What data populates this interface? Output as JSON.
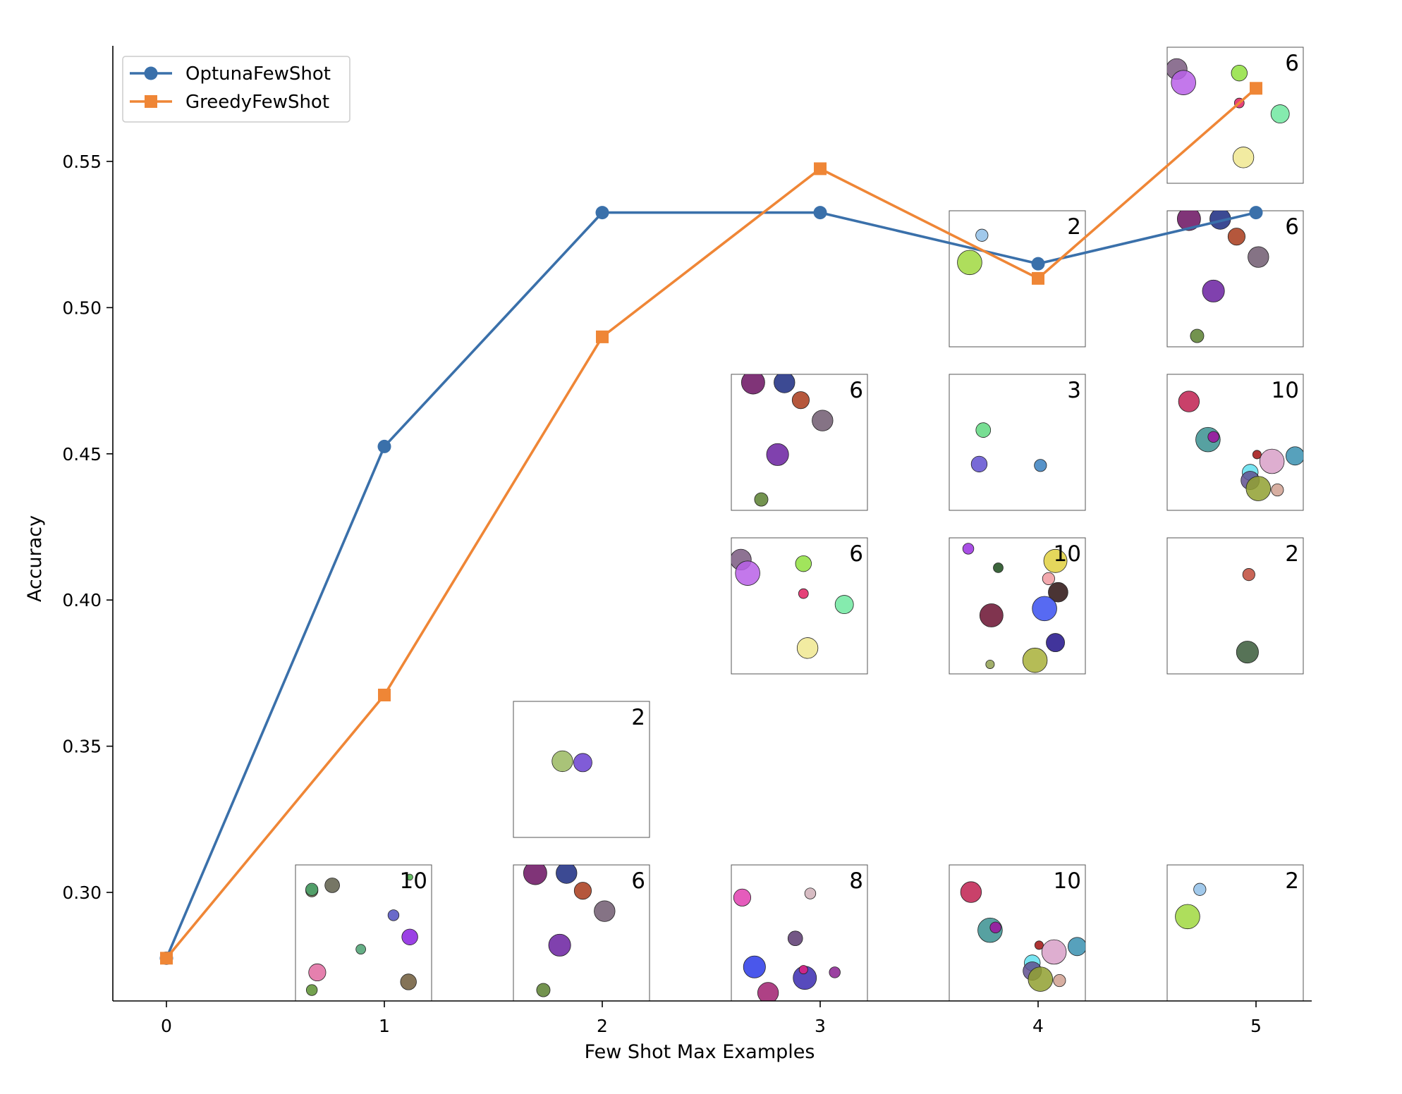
{
  "chart_data": {
    "type": "line",
    "xlabel": "Few Shot Max Examples",
    "ylabel": "Accuracy",
    "xlim": [
      -0.25,
      5.25
    ],
    "ylim": [
      0.2637,
      0.5933
    ],
    "x_ticks": [
      0,
      1,
      2,
      3,
      4,
      5
    ],
    "y_ticks": [
      0.3,
      0.35,
      0.4,
      0.45,
      0.5,
      0.55
    ],
    "x_tick_labels": [
      "0",
      "1",
      "2",
      "3",
      "4",
      "5"
    ],
    "y_tick_labels": [
      "0.30",
      "0.35",
      "0.40",
      "0.45",
      "0.50",
      "0.55"
    ],
    "legend_position": "top-left",
    "series": [
      {
        "name": "OptunaFewShot",
        "color": "#3a70aa",
        "marker": "circle",
        "x": [
          0,
          1,
          2,
          3,
          4,
          5
        ],
        "values": [
          0.2775,
          0.4525,
          0.5325,
          0.5325,
          0.515,
          0.5325
        ]
      },
      {
        "name": "GreedyFewShot",
        "color": "#ef8636",
        "marker": "square",
        "x": [
          0,
          1,
          2,
          3,
          4,
          5
        ],
        "values": [
          0.2775,
          0.3675,
          0.49,
          0.5475,
          0.51,
          0.575
        ]
      }
    ],
    "insets": [
      {
        "x": 1,
        "row": 0,
        "label": "10",
        "circles": [
          {
            "cx": 0.12,
            "cy": 0.19,
            "r": 0.05,
            "color": "#6b6b4a"
          },
          {
            "cx": 0.12,
            "cy": 0.18,
            "r": 0.05,
            "color": "#4aa56a"
          },
          {
            "cx": 0.27,
            "cy": 0.15,
            "r": 0.06,
            "color": "#5e5e4a"
          },
          {
            "cx": 0.84,
            "cy": 0.09,
            "r": 0.025,
            "color": "#4ab04a"
          },
          {
            "cx": 0.72,
            "cy": 0.37,
            "r": 0.045,
            "color": "#5050c0"
          },
          {
            "cx": 0.48,
            "cy": 0.62,
            "r": 0.04,
            "color": "#4aa070"
          },
          {
            "cx": 0.84,
            "cy": 0.53,
            "r": 0.065,
            "color": "#8a20e0"
          },
          {
            "cx": 0.16,
            "cy": 0.79,
            "r": 0.07,
            "color": "#e06aa0"
          },
          {
            "cx": 0.83,
            "cy": 0.86,
            "r": 0.065,
            "color": "#6e5a3a"
          },
          {
            "cx": 0.12,
            "cy": 0.92,
            "r": 0.045,
            "color": "#5a9030"
          }
        ]
      },
      {
        "x": 2,
        "row": 1,
        "label": "2",
        "circles": [
          {
            "cx": 0.36,
            "cy": 0.44,
            "r": 0.085,
            "color": "#9ab860"
          },
          {
            "cx": 0.51,
            "cy": 0.45,
            "r": 0.075,
            "color": "#6a40d0"
          }
        ]
      },
      {
        "x": 2,
        "row": 0,
        "label": "6",
        "circles": [
          {
            "cx": 0.16,
            "cy": 0.06,
            "r": 0.095,
            "color": "#6a1060"
          },
          {
            "cx": 0.39,
            "cy": 0.06,
            "r": 0.085,
            "color": "#1a2a80"
          },
          {
            "cx": 0.51,
            "cy": 0.19,
            "r": 0.07,
            "color": "#a83a1a"
          },
          {
            "cx": 0.67,
            "cy": 0.34,
            "r": 0.085,
            "color": "#705a70"
          },
          {
            "cx": 0.34,
            "cy": 0.59,
            "r": 0.09,
            "color": "#6a20a0"
          },
          {
            "cx": 0.22,
            "cy": 0.92,
            "r": 0.055,
            "color": "#5a8030"
          }
        ]
      },
      {
        "x": 3,
        "row": 3,
        "label": "6",
        "circles": [
          {
            "cx": 0.16,
            "cy": 0.06,
            "r": 0.095,
            "color": "#6a1060"
          },
          {
            "cx": 0.39,
            "cy": 0.06,
            "r": 0.085,
            "color": "#1a2a80"
          },
          {
            "cx": 0.51,
            "cy": 0.19,
            "r": 0.07,
            "color": "#a83a1a"
          },
          {
            "cx": 0.67,
            "cy": 0.34,
            "r": 0.085,
            "color": "#705a70"
          },
          {
            "cx": 0.34,
            "cy": 0.59,
            "r": 0.09,
            "color": "#6a20a0"
          },
          {
            "cx": 0.22,
            "cy": 0.92,
            "r": 0.055,
            "color": "#5a8030"
          }
        ]
      },
      {
        "x": 3,
        "row": 2,
        "label": "6",
        "circles": [
          {
            "cx": 0.07,
            "cy": 0.16,
            "r": 0.085,
            "color": "#7a5a80"
          },
          {
            "cx": 0.12,
            "cy": 0.26,
            "r": 0.1,
            "color": "#b860e8"
          },
          {
            "cx": 0.53,
            "cy": 0.19,
            "r": 0.065,
            "color": "#90e040"
          },
          {
            "cx": 0.53,
            "cy": 0.41,
            "r": 0.04,
            "color": "#e02060"
          },
          {
            "cx": 0.83,
            "cy": 0.49,
            "r": 0.075,
            "color": "#70e8a0"
          },
          {
            "cx": 0.56,
            "cy": 0.81,
            "r": 0.085,
            "color": "#f0e890"
          }
        ]
      },
      {
        "x": 3,
        "row": 0,
        "label": "8",
        "circles": [
          {
            "cx": 0.08,
            "cy": 0.24,
            "r": 0.07,
            "color": "#e040b0"
          },
          {
            "cx": 0.58,
            "cy": 0.21,
            "r": 0.045,
            "color": "#d0b0b8"
          },
          {
            "cx": 0.47,
            "cy": 0.54,
            "r": 0.06,
            "color": "#5a3a70"
          },
          {
            "cx": 0.17,
            "cy": 0.75,
            "r": 0.09,
            "color": "#2a3ae8"
          },
          {
            "cx": 0.54,
            "cy": 0.83,
            "r": 0.095,
            "color": "#3a2ab0"
          },
          {
            "cx": 0.53,
            "cy": 0.77,
            "r": 0.035,
            "color": "#e02080"
          },
          {
            "cx": 0.76,
            "cy": 0.79,
            "r": 0.045,
            "color": "#8a2090"
          },
          {
            "cx": 0.27,
            "cy": 0.94,
            "r": 0.085,
            "color": "#a02070"
          }
        ]
      },
      {
        "x": 4,
        "row": 4,
        "label": "2",
        "circles": [
          {
            "cx": 0.24,
            "cy": 0.18,
            "r": 0.05,
            "color": "#90c0e8"
          },
          {
            "cx": 0.15,
            "cy": 0.38,
            "r": 0.1,
            "color": "#a0d840"
          }
        ]
      },
      {
        "x": 4,
        "row": 3,
        "label": "3",
        "circles": [
          {
            "cx": 0.25,
            "cy": 0.41,
            "r": 0.06,
            "color": "#60d880"
          },
          {
            "cx": 0.22,
            "cy": 0.66,
            "r": 0.065,
            "color": "#6050d0"
          },
          {
            "cx": 0.67,
            "cy": 0.67,
            "r": 0.05,
            "color": "#3a80c0"
          }
        ]
      },
      {
        "x": 4,
        "row": 2,
        "label": "10",
        "circles": [
          {
            "cx": 0.14,
            "cy": 0.08,
            "r": 0.045,
            "color": "#9a30e0"
          },
          {
            "cx": 0.36,
            "cy": 0.22,
            "r": 0.04,
            "color": "#1a4a1a"
          },
          {
            "cx": 0.78,
            "cy": 0.17,
            "r": 0.095,
            "color": "#e0d040"
          },
          {
            "cx": 0.73,
            "cy": 0.3,
            "r": 0.05,
            "color": "#f09aa0"
          },
          {
            "cx": 0.8,
            "cy": 0.4,
            "r": 0.08,
            "color": "#2a1010"
          },
          {
            "cx": 0.7,
            "cy": 0.52,
            "r": 0.1,
            "color": "#3a50f0"
          },
          {
            "cx": 0.31,
            "cy": 0.57,
            "r": 0.095,
            "color": "#6a1030"
          },
          {
            "cx": 0.78,
            "cy": 0.77,
            "r": 0.075,
            "color": "#20108a"
          },
          {
            "cx": 0.3,
            "cy": 0.93,
            "r": 0.035,
            "color": "#90a050"
          },
          {
            "cx": 0.63,
            "cy": 0.9,
            "r": 0.1,
            "color": "#a8b038"
          }
        ]
      },
      {
        "x": 4,
        "row": 0,
        "label": "10",
        "circles": [
          {
            "cx": 0.16,
            "cy": 0.2,
            "r": 0.085,
            "color": "#c02050"
          },
          {
            "cx": 0.3,
            "cy": 0.48,
            "r": 0.1,
            "color": "#3a9090"
          },
          {
            "cx": 0.34,
            "cy": 0.46,
            "r": 0.045,
            "color": "#a010a0"
          },
          {
            "cx": 0.66,
            "cy": 0.59,
            "r": 0.035,
            "color": "#a01010"
          },
          {
            "cx": 0.61,
            "cy": 0.72,
            "r": 0.065,
            "color": "#60e0f0"
          },
          {
            "cx": 0.77,
            "cy": 0.64,
            "r": 0.1,
            "color": "#d8a0c8"
          },
          {
            "cx": 0.94,
            "cy": 0.6,
            "r": 0.075,
            "color": "#3a90b0"
          },
          {
            "cx": 0.61,
            "cy": 0.78,
            "r": 0.075,
            "color": "#605090"
          },
          {
            "cx": 0.67,
            "cy": 0.84,
            "r": 0.1,
            "color": "#90a030"
          },
          {
            "cx": 0.81,
            "cy": 0.85,
            "r": 0.05,
            "color": "#d0a090"
          }
        ]
      },
      {
        "x": 5,
        "row": 5,
        "label": "6",
        "circles": [
          {
            "cx": 0.07,
            "cy": 0.16,
            "r": 0.085,
            "color": "#7a5a80"
          },
          {
            "cx": 0.12,
            "cy": 0.26,
            "r": 0.1,
            "color": "#b860e8"
          },
          {
            "cx": 0.53,
            "cy": 0.19,
            "r": 0.065,
            "color": "#90e040"
          },
          {
            "cx": 0.53,
            "cy": 0.41,
            "r": 0.04,
            "color": "#e02060"
          },
          {
            "cx": 0.83,
            "cy": 0.49,
            "r": 0.075,
            "color": "#70e8a0"
          },
          {
            "cx": 0.56,
            "cy": 0.81,
            "r": 0.085,
            "color": "#f0e890"
          }
        ]
      },
      {
        "x": 5,
        "row": 4,
        "label": "6",
        "circles": [
          {
            "cx": 0.16,
            "cy": 0.06,
            "r": 0.095,
            "color": "#6a1060"
          },
          {
            "cx": 0.39,
            "cy": 0.06,
            "r": 0.085,
            "color": "#1a2a80"
          },
          {
            "cx": 0.51,
            "cy": 0.19,
            "r": 0.07,
            "color": "#a83a1a"
          },
          {
            "cx": 0.67,
            "cy": 0.34,
            "r": 0.085,
            "color": "#705a70"
          },
          {
            "cx": 0.34,
            "cy": 0.59,
            "r": 0.09,
            "color": "#6a20a0"
          },
          {
            "cx": 0.22,
            "cy": 0.92,
            "r": 0.055,
            "color": "#5a8030"
          }
        ]
      },
      {
        "x": 5,
        "row": 3,
        "label": "10",
        "circles": [
          {
            "cx": 0.16,
            "cy": 0.2,
            "r": 0.085,
            "color": "#c02050"
          },
          {
            "cx": 0.3,
            "cy": 0.48,
            "r": 0.1,
            "color": "#3a9090"
          },
          {
            "cx": 0.34,
            "cy": 0.46,
            "r": 0.045,
            "color": "#a010a0"
          },
          {
            "cx": 0.66,
            "cy": 0.59,
            "r": 0.035,
            "color": "#a01010"
          },
          {
            "cx": 0.61,
            "cy": 0.72,
            "r": 0.065,
            "color": "#60e0f0"
          },
          {
            "cx": 0.77,
            "cy": 0.64,
            "r": 0.1,
            "color": "#d8a0c8"
          },
          {
            "cx": 0.94,
            "cy": 0.6,
            "r": 0.075,
            "color": "#3a90b0"
          },
          {
            "cx": 0.61,
            "cy": 0.78,
            "r": 0.075,
            "color": "#605090"
          },
          {
            "cx": 0.67,
            "cy": 0.84,
            "r": 0.1,
            "color": "#90a030"
          },
          {
            "cx": 0.81,
            "cy": 0.85,
            "r": 0.05,
            "color": "#d0a090"
          }
        ]
      },
      {
        "x": 5,
        "row": 2,
        "label": "2",
        "circles": [
          {
            "cx": 0.6,
            "cy": 0.27,
            "r": 0.05,
            "color": "#c04a3a"
          },
          {
            "cx": 0.59,
            "cy": 0.84,
            "r": 0.09,
            "color": "#3a5a3a"
          }
        ]
      },
      {
        "x": 5,
        "row": 0,
        "label": "2",
        "circles": [
          {
            "cx": 0.24,
            "cy": 0.18,
            "r": 0.05,
            "color": "#90c0e8"
          },
          {
            "cx": 0.15,
            "cy": 0.38,
            "r": 0.1,
            "color": "#a0d840"
          }
        ]
      }
    ]
  }
}
